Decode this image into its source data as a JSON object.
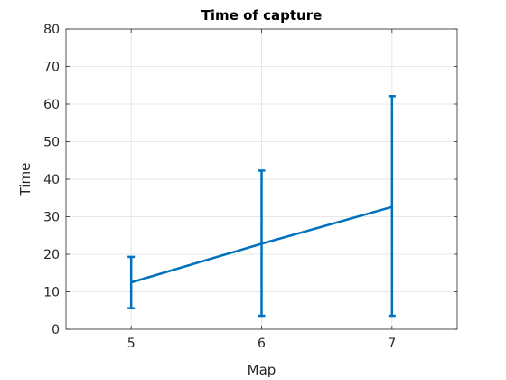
{
  "chart_data": {
    "type": "line",
    "title": "Time of capture",
    "xlabel": "Map",
    "ylabel": "Time",
    "x": [
      5,
      6,
      7
    ],
    "xlim": [
      4.5,
      7.5
    ],
    "ylim": [
      0,
      80
    ],
    "xticks": [
      5,
      6,
      7
    ],
    "yticks": [
      0,
      10,
      20,
      30,
      40,
      50,
      60,
      70,
      80
    ],
    "grid": true,
    "series": [
      {
        "values": [
          12.5,
          22.8,
          32.6
        ],
        "lower": [
          5.6,
          3.6,
          3.6
        ],
        "upper": [
          19.3,
          42.3,
          62.1
        ],
        "color": "#0072BD"
      }
    ]
  }
}
